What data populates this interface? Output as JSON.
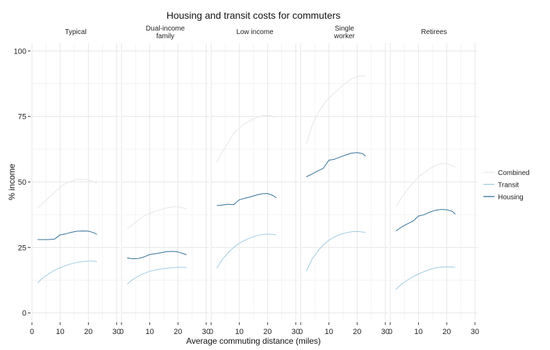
{
  "chart_data": {
    "type": "line",
    "title": "Housing and transit costs for commuters",
    "xlabel": "Average commuting distance (miles)",
    "ylabel": "% income",
    "xlim": [
      0,
      31
    ],
    "ylim": [
      -3,
      103
    ],
    "x_ticks": [
      0,
      10,
      20,
      30
    ],
    "y_ticks": [
      0,
      25,
      50,
      75,
      100
    ],
    "grid": true,
    "legend_position": "right",
    "legend": [
      {
        "key": "combined",
        "label": "Combined",
        "color": "#e6eaed"
      },
      {
        "key": "transit",
        "label": "Transit",
        "color": "#9ecae1"
      },
      {
        "key": "housing",
        "label": "Housing",
        "color": "#2b6c96"
      }
    ],
    "x": [
      2,
      4,
      6,
      8,
      10,
      12,
      14,
      16,
      18,
      20,
      22,
      23
    ],
    "panels": [
      {
        "title_lines": [
          "Typical"
        ],
        "series": {
          "combined": [
            40,
            42,
            44,
            46,
            48,
            49.5,
            50.3,
            51,
            51,
            50.8,
            50,
            49.5
          ],
          "transit": [
            11.5,
            13.5,
            15,
            16.3,
            17.3,
            18.1,
            18.8,
            19.3,
            19.6,
            19.8,
            19.8,
            19.6
          ],
          "housing": [
            28,
            28,
            28,
            28.2,
            29.8,
            30.2,
            30.8,
            31.2,
            31.3,
            31.2,
            30.6,
            30
          ]
        }
      },
      {
        "title_lines": [
          "Dual-income",
          "family"
        ],
        "series": {
          "combined": [
            32,
            33.8,
            35.5,
            37,
            38,
            38.8,
            39.5,
            40.1,
            40.5,
            40.5,
            40,
            39.5
          ],
          "transit": [
            11,
            12.8,
            14.1,
            15.1,
            15.9,
            16.4,
            16.8,
            17.1,
            17.3,
            17.4,
            17.4,
            17.3
          ],
          "housing": [
            21,
            20.7,
            20.8,
            21.4,
            22.3,
            22.6,
            23,
            23.4,
            23.5,
            23.3,
            22.6,
            22.2
          ]
        }
      },
      {
        "title_lines": [
          "Low income"
        ],
        "series": {
          "combined": [
            57.5,
            61.5,
            65,
            68.5,
            70.5,
            72.3,
            73.5,
            74.5,
            75.2,
            75.5,
            75,
            74.6
          ],
          "transit": [
            17,
            20.5,
            23,
            25,
            26.6,
            27.8,
            28.7,
            29.4,
            29.9,
            30.1,
            30,
            29.8
          ],
          "housing": [
            41,
            41.2,
            41.5,
            41.3,
            43.2,
            43.8,
            44.3,
            45,
            45.5,
            45.6,
            44.8,
            44
          ]
        }
      },
      {
        "title_lines": [
          "Single",
          "worker"
        ],
        "series": {
          "combined": [
            64.5,
            71.5,
            76,
            79.5,
            82,
            84,
            86,
            87.8,
            89.3,
            90.3,
            90.5,
            90.3
          ],
          "transit": [
            16,
            20.5,
            23.5,
            26,
            27.8,
            29,
            30,
            30.6,
            31,
            31.1,
            30.9,
            30.7
          ],
          "housing": [
            52,
            53,
            54.2,
            55.2,
            58.3,
            58.7,
            59.5,
            60.3,
            61,
            61.2,
            60.8,
            59.8
          ]
        }
      },
      {
        "title_lines": [
          "Retirees"
        ],
        "series": {
          "combined": [
            40.5,
            44,
            47,
            49.5,
            52,
            53.5,
            55,
            56.3,
            57,
            57,
            56.3,
            55.5
          ],
          "transit": [
            9,
            11,
            12.5,
            13.8,
            14.9,
            15.8,
            16.6,
            17.2,
            17.5,
            17.6,
            17.5,
            17.4
          ],
          "housing": [
            31.3,
            32.8,
            34,
            35,
            37,
            37.5,
            38.5,
            39.2,
            39.5,
            39.4,
            38.8,
            37.7
          ]
        }
      }
    ]
  }
}
